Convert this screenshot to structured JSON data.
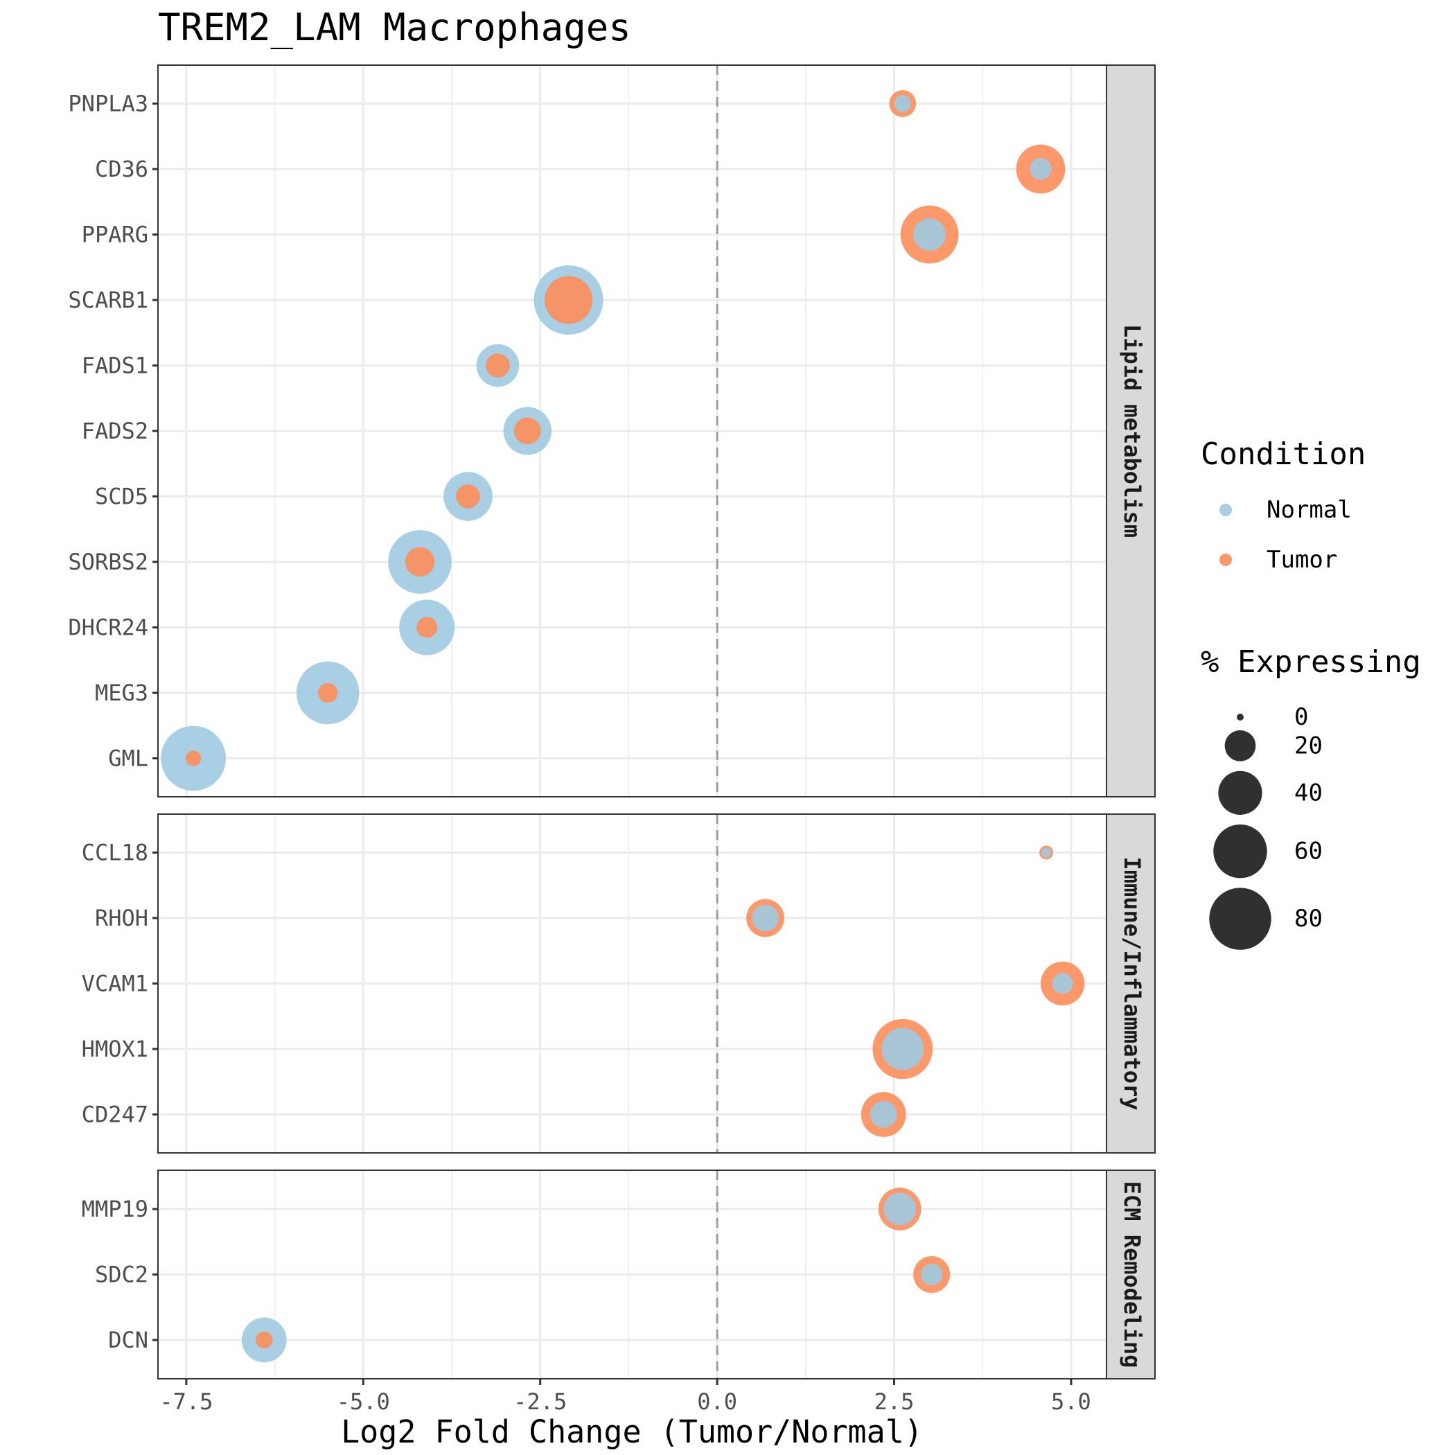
{
  "chart_data": {
    "type": "scatter",
    "title": "TREM2_LAM Macrophages",
    "xlabel": "Log2 Fold Change (Tumor/Normal)",
    "ylabel": "",
    "xlim": [
      -7.9,
      5.5
    ],
    "x_ticks": [
      -7.5,
      -5.0,
      -2.5,
      0.0,
      2.5,
      5.0
    ],
    "x_tick_labels": [
      "-7.5",
      "-5.0",
      "-2.5",
      "0.0",
      "2.5",
      "5.0"
    ],
    "reference_line": {
      "x": 0,
      "style": "dashed"
    },
    "grid": true,
    "colors": {
      "Normal": "#9ecae1",
      "Tumor": "#fc8d59"
    },
    "legend": {
      "position": "right",
      "condition_title": "Condition",
      "conditions": [
        "Normal",
        "Tumor"
      ],
      "size_title": "% Expressing",
      "size_breaks": [
        0,
        20,
        40,
        60,
        80
      ],
      "size_labels": [
        "0",
        "20",
        "40",
        "60",
        "80"
      ]
    },
    "facets": [
      {
        "name": "Lipid metabolism",
        "genes": [
          {
            "gene": "PNPLA3",
            "log2fc": 2.62,
            "pct_normal": 6,
            "pct_tumor": 15
          },
          {
            "gene": "CD36",
            "log2fc": 4.57,
            "pct_normal": 10,
            "pct_tumor": 50
          },
          {
            "gene": "PPARG",
            "log2fc": 3.0,
            "pct_normal": 22,
            "pct_tumor": 70
          },
          {
            "gene": "SCARB1",
            "log2fc": -2.1,
            "pct_normal": 100,
            "pct_tumor": 48
          },
          {
            "gene": "FADS1",
            "log2fc": -3.1,
            "pct_normal": 38,
            "pct_tumor": 12
          },
          {
            "gene": "FADS2",
            "log2fc": -2.68,
            "pct_normal": 48,
            "pct_tumor": 15
          },
          {
            "gene": "SCD5",
            "log2fc": -3.52,
            "pct_normal": 50,
            "pct_tumor": 12
          },
          {
            "gene": "SORBS2",
            "log2fc": -4.2,
            "pct_normal": 84,
            "pct_tumor": 18
          },
          {
            "gene": "DHCR24",
            "log2fc": -4.1,
            "pct_normal": 64,
            "pct_tumor": 9
          },
          {
            "gene": "MEG3",
            "log2fc": -5.5,
            "pct_normal": 82,
            "pct_tumor": 8
          },
          {
            "gene": "GML",
            "log2fc": -7.4,
            "pct_normal": 88,
            "pct_tumor": 5
          }
        ]
      },
      {
        "name": "Immune/Inflammatory",
        "genes": [
          {
            "gene": "CCL18",
            "log2fc": 4.65,
            "pct_normal": 2,
            "pct_tumor": 4
          },
          {
            "gene": "RHOH",
            "log2fc": 0.68,
            "pct_normal": 15,
            "pct_tumor": 30
          },
          {
            "gene": "VCAM1",
            "log2fc": 4.88,
            "pct_normal": 9,
            "pct_tumor": 40
          },
          {
            "gene": "HMOX1",
            "log2fc": 2.62,
            "pct_normal": 37,
            "pct_tumor": 75
          },
          {
            "gene": "CD247",
            "log2fc": 2.35,
            "pct_normal": 15,
            "pct_tumor": 42
          }
        ]
      },
      {
        "name": "ECM Remodeling",
        "genes": [
          {
            "gene": "MMP19",
            "log2fc": 2.58,
            "pct_normal": 22,
            "pct_tumor": 38
          },
          {
            "gene": "SDC2",
            "log2fc": 3.03,
            "pct_normal": 10,
            "pct_tumor": 28
          },
          {
            "gene": "DCN",
            "log2fc": -6.4,
            "pct_normal": 42,
            "pct_tumor": 6
          }
        ]
      }
    ]
  }
}
